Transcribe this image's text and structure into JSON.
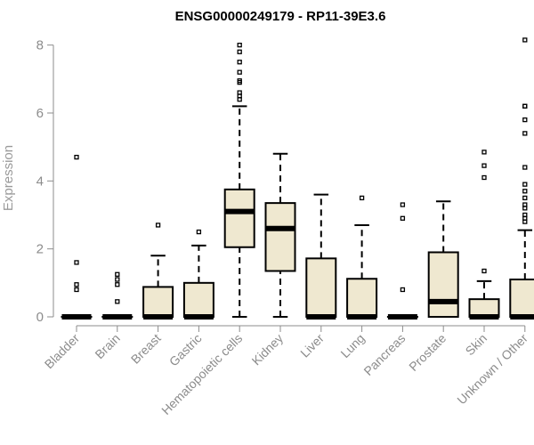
{
  "chart_data": {
    "type": "boxplot",
    "title": "ENSG00000249179 - RP11-39E3.6",
    "ylabel": "Expression",
    "xlabel": "",
    "ylim": [
      0,
      8.2
    ],
    "yticks": [
      0,
      2,
      4,
      6,
      8
    ],
    "box_fill": "#efe8d0",
    "box_stroke": "#000000",
    "label_color": "#8c8c8c",
    "categories": [
      "Bladder",
      "Brain",
      "Breast",
      "Gastric",
      "Hematopoietic cells",
      "Kidney",
      "Liver",
      "Lung",
      "Pancreas",
      "Prostate",
      "Skin",
      "Unknown / Other"
    ],
    "boxes": [
      {
        "category": "Bladder",
        "q1": 0,
        "median": 0,
        "q3": 0,
        "whisker_low": 0,
        "whisker_high": 0,
        "outliers": [
          4.7,
          1.6,
          0.95,
          0.8
        ]
      },
      {
        "category": "Brain",
        "q1": 0,
        "median": 0,
        "q3": 0,
        "whisker_low": 0,
        "whisker_high": 0,
        "outliers": [
          1.25,
          1.1,
          0.95,
          0.45
        ]
      },
      {
        "category": "Breast",
        "q1": 0,
        "median": 0,
        "q3": 0.88,
        "whisker_low": 0,
        "whisker_high": 1.8,
        "outliers": [
          2.7
        ]
      },
      {
        "category": "Gastric",
        "q1": 0,
        "median": 0,
        "q3": 1.0,
        "whisker_low": 0,
        "whisker_high": 2.1,
        "outliers": [
          2.5
        ]
      },
      {
        "category": "Hematopoietic cells",
        "q1": 2.05,
        "median": 3.1,
        "q3": 3.75,
        "whisker_low": 0,
        "whisker_high": 6.2,
        "outliers": [
          8.0,
          7.8,
          7.5,
          7.2,
          6.95,
          6.9,
          6.6,
          6.5,
          6.4
        ]
      },
      {
        "category": "Kidney",
        "q1": 1.35,
        "median": 2.6,
        "q3": 3.35,
        "whisker_low": 0,
        "whisker_high": 4.8,
        "outliers": []
      },
      {
        "category": "Liver",
        "q1": 0,
        "median": 0,
        "q3": 1.72,
        "whisker_low": 0,
        "whisker_high": 3.6,
        "outliers": []
      },
      {
        "category": "Lung",
        "q1": 0,
        "median": 0,
        "q3": 1.12,
        "whisker_low": 0,
        "whisker_high": 2.7,
        "outliers": [
          3.5
        ]
      },
      {
        "category": "Pancreas",
        "q1": 0,
        "median": 0,
        "q3": 0,
        "whisker_low": 0,
        "whisker_high": 0,
        "outliers": [
          3.3,
          2.9,
          0.8
        ]
      },
      {
        "category": "Prostate",
        "q1": 0,
        "median": 0.45,
        "q3": 1.9,
        "whisker_low": 0,
        "whisker_high": 3.4,
        "outliers": []
      },
      {
        "category": "Skin",
        "q1": 0,
        "median": 0,
        "q3": 0.52,
        "whisker_low": 0,
        "whisker_high": 1.05,
        "outliers": [
          4.85,
          4.45,
          4.1,
          1.35
        ]
      },
      {
        "category": "Unknown / Other",
        "q1": 0,
        "median": 0,
        "q3": 1.1,
        "whisker_low": 0,
        "whisker_high": 2.55,
        "outliers": [
          8.15,
          6.2,
          6.2,
          5.8,
          5.4,
          4.4,
          3.9,
          3.7,
          3.5,
          3.3,
          3.2,
          3.0,
          2.9,
          2.8
        ]
      }
    ]
  }
}
